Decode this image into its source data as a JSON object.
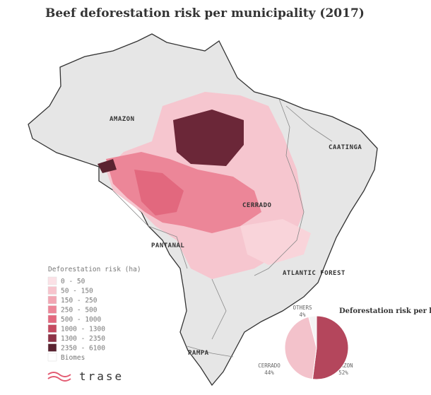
{
  "title": "Beef deforestation risk per municipality (2017)",
  "map": {
    "biomes": [
      "AMAZON",
      "CAATINGA",
      "CERRADO",
      "PANTANAL",
      "ATLANTIC FOREST",
      "PAMPA"
    ]
  },
  "legend": {
    "title": "Deforestation risk (ha)",
    "items": [
      {
        "label": "0 - 50",
        "color": "#fbe1e6"
      },
      {
        "label": "50 - 150",
        "color": "#f7c4cd"
      },
      {
        "label": "150 - 250",
        "color": "#f2a6b3"
      },
      {
        "label": "250 - 500",
        "color": "#ec8698"
      },
      {
        "label": "500 - 1000",
        "color": "#e2687e"
      },
      {
        "label": "1000 - 1300",
        "color": "#c44a60"
      },
      {
        "label": "1300 - 2350",
        "color": "#8d3246"
      },
      {
        "label": "2350 - 6100",
        "color": "#5a2330"
      },
      {
        "label": "Biomes",
        "color": "#ffffff"
      }
    ]
  },
  "logo": "trase",
  "chart_data": {
    "type": "pie",
    "title": "Deforestation risk per biome",
    "categories": [
      "AMAZON",
      "CERRADO",
      "OTHERS"
    ],
    "values": [
      52,
      44,
      4
    ],
    "value_labels": [
      "52%",
      "44%",
      "4%"
    ],
    "colors": [
      "#b4465c",
      "#f3c2cb",
      "#f4f4f4"
    ]
  }
}
